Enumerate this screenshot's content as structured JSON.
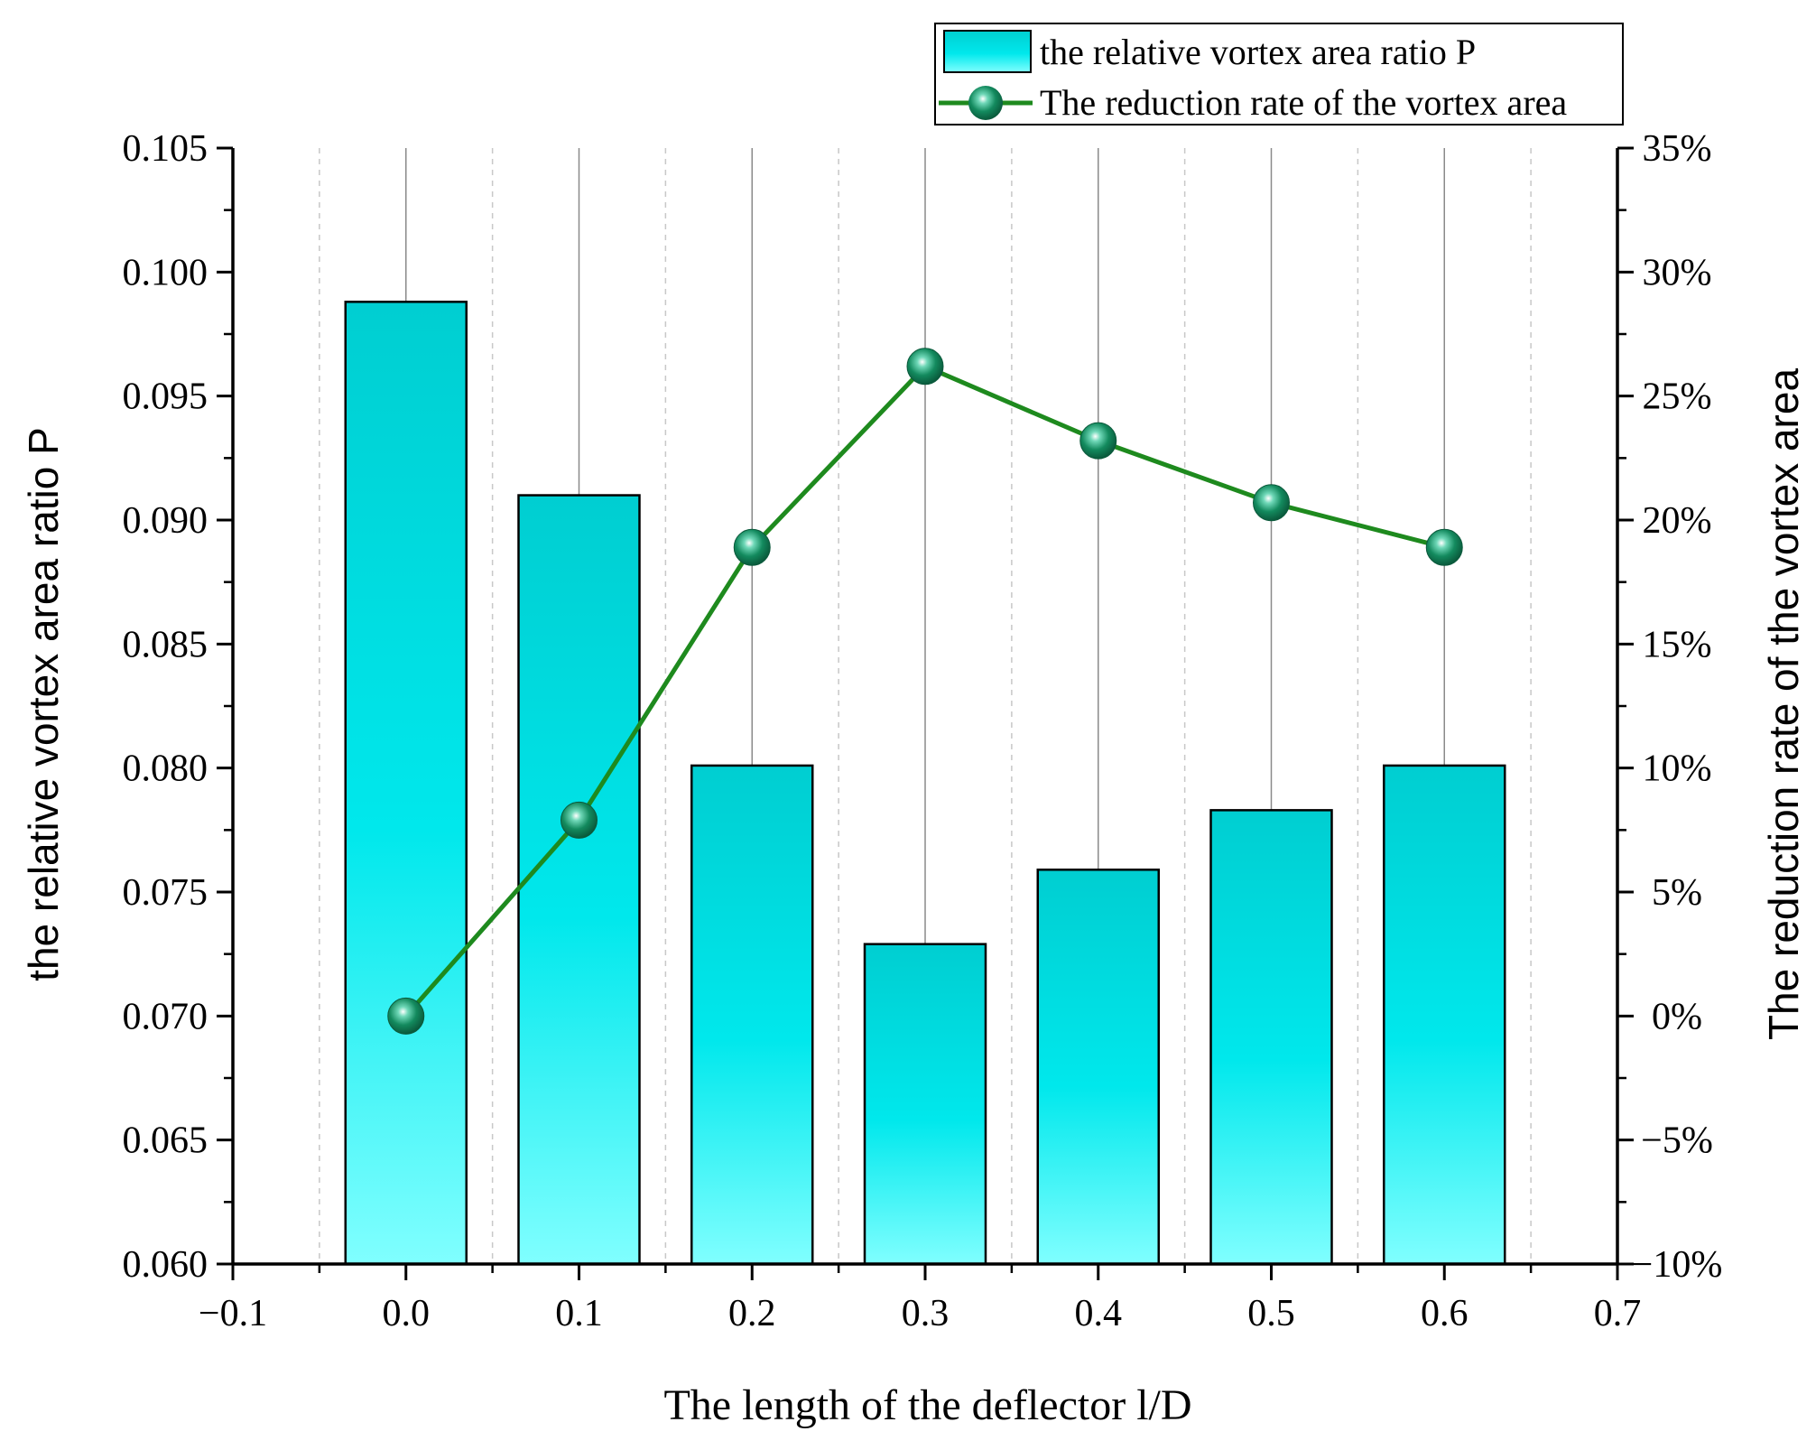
{
  "colors": {
    "bar_top": "#00CED1",
    "bar_mid": "#00E8EC",
    "bar_bottom": "#80FFFF",
    "bar_stroke": "#000000",
    "line": "#1E8A1E",
    "marker": "#138A5E",
    "grid": "#C8C8C8"
  },
  "chart_data": {
    "type": "bar+line",
    "xlabel": "The length of the deflector l/D",
    "ylabel_left": "the relative vortex area ratio P",
    "ylabel_right": "The reduction rate of the vortex area",
    "xlim": [
      -0.1,
      0.7
    ],
    "xticks": [
      "−0.1",
      "0.0",
      "0.1",
      "0.2",
      "0.3",
      "0.4",
      "0.5",
      "0.6",
      "0.7"
    ],
    "ylim_left": [
      0.06,
      0.105
    ],
    "yticks_left": [
      "0.060",
      "0.065",
      "0.070",
      "0.075",
      "0.080",
      "0.085",
      "0.090",
      "0.095",
      "0.100",
      "0.105"
    ],
    "ylim_right": [
      -10,
      35
    ],
    "yticks_right": [
      "−10%",
      "−5%",
      "0%",
      "5%",
      "10%",
      "15%",
      "20%",
      "25%",
      "30%",
      "35%"
    ],
    "x": [
      0.0,
      0.1,
      0.2,
      0.3,
      0.4,
      0.5,
      0.6
    ],
    "series": [
      {
        "name": "the relative vortex area ratio P",
        "type": "bar",
        "axis": "left",
        "values": [
          0.0988,
          0.091,
          0.0801,
          0.0729,
          0.0759,
          0.0783,
          0.0801
        ]
      },
      {
        "name": "The reduction rate of the vortex area",
        "type": "line",
        "axis": "right",
        "values": [
          0.0,
          7.9,
          18.9,
          26.2,
          23.2,
          20.7,
          18.9
        ]
      }
    ],
    "legend": {
      "position": "top-right",
      "entries": [
        "the relative vortex area ratio P",
        "The reduction rate of the vortex area"
      ]
    }
  }
}
